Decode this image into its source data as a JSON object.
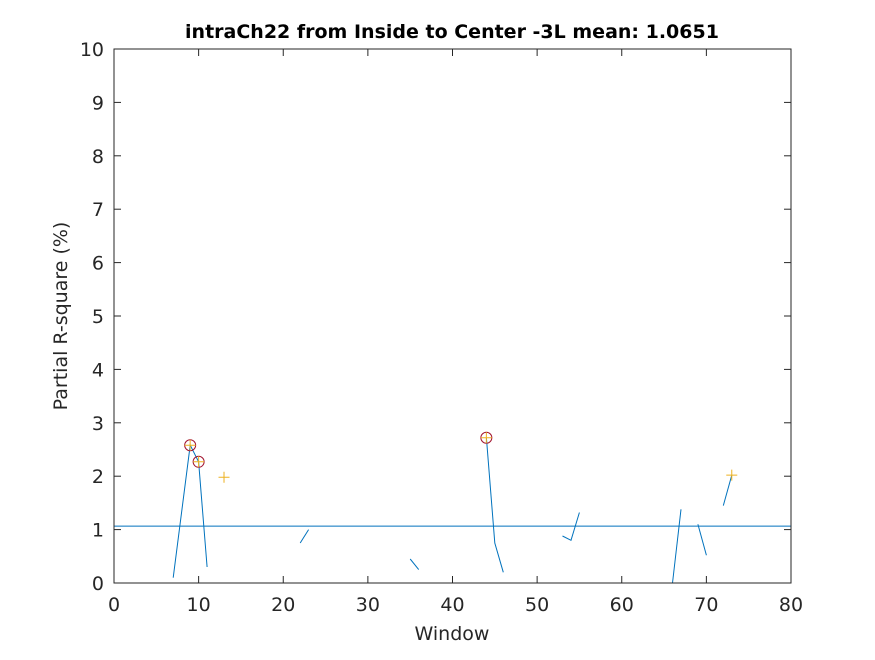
{
  "chart_data": {
    "type": "line",
    "title": "intraCh22 from Inside to Center -3L mean: 1.0651",
    "xlabel": "Window",
    "ylabel": "Partial R-square (%)",
    "xlim": [
      0,
      80
    ],
    "ylim": [
      0,
      10
    ],
    "xticks": [
      0,
      10,
      20,
      30,
      40,
      50,
      60,
      70,
      80
    ],
    "yticks": [
      0,
      1,
      2,
      3,
      4,
      5,
      6,
      7,
      8,
      9,
      10
    ],
    "grid": false,
    "mean_line": 1.0651,
    "segments": [
      [
        [
          7,
          0.1
        ],
        [
          9,
          2.58
        ],
        [
          10,
          2.27
        ],
        [
          11,
          0.3
        ]
      ],
      [
        [
          22,
          0.75
        ],
        [
          23,
          1.0
        ]
      ],
      [
        [
          35,
          0.45
        ],
        [
          36,
          0.25
        ]
      ],
      [
        [
          44,
          2.72
        ],
        [
          45,
          0.75
        ],
        [
          46,
          0.2
        ]
      ],
      [
        [
          53,
          0.88
        ],
        [
          54,
          0.8
        ],
        [
          55,
          1.32
        ]
      ],
      [
        [
          66,
          0.0
        ],
        [
          67,
          1.38
        ]
      ],
      [
        [
          69,
          1.1
        ],
        [
          70,
          0.52
        ]
      ],
      [
        [
          72,
          1.45
        ],
        [
          73,
          2.02
        ]
      ]
    ],
    "circle_markers": [
      [
        9,
        2.58
      ],
      [
        10,
        2.27
      ],
      [
        44,
        2.72
      ]
    ],
    "plus_markers": [
      [
        9,
        2.58
      ],
      [
        10,
        2.27
      ],
      [
        13,
        1.98
      ],
      [
        44,
        2.72
      ],
      [
        73,
        2.02
      ]
    ],
    "colors": {
      "line": "#0072BD",
      "circle": "#A2142F",
      "plus": "#EDB120",
      "axis": "#262626"
    }
  }
}
